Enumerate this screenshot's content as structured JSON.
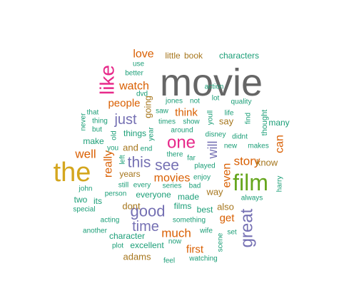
{
  "chart_data": {
    "type": "wordcloud",
    "colors": {
      "gray": "#666666",
      "gold": "#D4A61E",
      "green": "#66A61E",
      "magenta": "#E7298A",
      "purple": "#7570B3",
      "orange": "#D95F02",
      "brown": "#A6761D",
      "teal": "#1B9E77"
    },
    "words": [
      {
        "text": "movie",
        "tier": 1,
        "color": "gray",
        "rotate": 0
      },
      {
        "text": "the",
        "tier": 2,
        "color": "gold",
        "rotate": 0
      },
      {
        "text": "film",
        "tier": 2,
        "color": "green",
        "rotate": 0
      },
      {
        "text": "like",
        "tier": 3,
        "color": "magenta",
        "rotate": -90
      },
      {
        "text": "one",
        "tier": 3,
        "color": "magenta",
        "rotate": 0
      },
      {
        "text": "great",
        "tier": 4,
        "color": "purple",
        "rotate": -90
      },
      {
        "text": "good",
        "tier": 4,
        "color": "purple",
        "rotate": 0
      },
      {
        "text": "time",
        "tier": 4,
        "color": "purple",
        "rotate": 0
      },
      {
        "text": "see",
        "tier": 4,
        "color": "purple",
        "rotate": 0
      },
      {
        "text": "this",
        "tier": 4,
        "color": "purple",
        "rotate": 0
      },
      {
        "text": "just",
        "tier": 4,
        "color": "purple",
        "rotate": 0
      },
      {
        "text": "will",
        "tier": 4,
        "color": "purple",
        "rotate": -90
      },
      {
        "text": "story",
        "tier": 5,
        "color": "orange",
        "rotate": 0
      },
      {
        "text": "well",
        "tier": 5,
        "color": "orange",
        "rotate": 0
      },
      {
        "text": "much",
        "tier": 5,
        "color": "orange",
        "rotate": 0
      },
      {
        "text": "movies",
        "tier": 5,
        "color": "orange",
        "rotate": 0
      },
      {
        "text": "love",
        "tier": 5,
        "color": "orange",
        "rotate": 0
      },
      {
        "text": "really",
        "tier": 5,
        "color": "orange",
        "rotate": -90
      },
      {
        "text": "even",
        "tier": 5,
        "color": "orange",
        "rotate": -90
      },
      {
        "text": "can",
        "tier": 5,
        "color": "orange",
        "rotate": -90
      },
      {
        "text": "watch",
        "tier": 5,
        "color": "orange",
        "rotate": 0
      },
      {
        "text": "people",
        "tier": 5,
        "color": "orange",
        "rotate": 0
      },
      {
        "text": "think",
        "tier": 5,
        "color": "orange",
        "rotate": 0
      },
      {
        "text": "get",
        "tier": 5,
        "color": "orange",
        "rotate": 0
      },
      {
        "text": "first",
        "tier": 5,
        "color": "orange",
        "rotate": 0
      },
      {
        "text": "say",
        "tier": 6,
        "color": "brown",
        "rotate": 0
      },
      {
        "text": "know",
        "tier": 6,
        "color": "brown",
        "rotate": 0
      },
      {
        "text": "and",
        "tier": 6,
        "color": "brown",
        "rotate": 0
      },
      {
        "text": "dont",
        "tier": 6,
        "color": "brown",
        "rotate": 0
      },
      {
        "text": "adams",
        "tier": 6,
        "color": "brown",
        "rotate": 0
      },
      {
        "text": "also",
        "tier": 6,
        "color": "brown",
        "rotate": 0
      },
      {
        "text": "way",
        "tier": 6,
        "color": "brown",
        "rotate": 0
      },
      {
        "text": "going",
        "tier": 6,
        "color": "brown",
        "rotate": -90
      },
      {
        "text": "years",
        "tier": 6,
        "color": "brown",
        "rotate": 0
      },
      {
        "text": "characters",
        "tier": 7,
        "color": "teal",
        "rotate": 0
      },
      {
        "text": "little",
        "tier": 7,
        "color": "brown",
        "rotate": 0
      },
      {
        "text": "book",
        "tier": 7,
        "color": "brown",
        "rotate": 0
      },
      {
        "text": "things",
        "tier": 7,
        "color": "teal",
        "rotate": 0
      },
      {
        "text": "make",
        "tier": 7,
        "color": "teal",
        "rotate": 0
      },
      {
        "text": "everyone",
        "tier": 7,
        "color": "teal",
        "rotate": 0
      },
      {
        "text": "made",
        "tier": 7,
        "color": "teal",
        "rotate": 0
      },
      {
        "text": "character",
        "tier": 7,
        "color": "teal",
        "rotate": 0
      },
      {
        "text": "excellent",
        "tier": 7,
        "color": "teal",
        "rotate": 0
      },
      {
        "text": "best",
        "tier": 7,
        "color": "teal",
        "rotate": 0
      },
      {
        "text": "films",
        "tier": 7,
        "color": "teal",
        "rotate": 0
      },
      {
        "text": "thought",
        "tier": 7,
        "color": "teal",
        "rotate": -90
      },
      {
        "text": "many",
        "tier": 7,
        "color": "teal",
        "rotate": 0
      },
      {
        "text": "two",
        "tier": 7,
        "color": "teal",
        "rotate": 0
      },
      {
        "text": "its",
        "tier": 7,
        "color": "teal",
        "rotate": 0
      },
      {
        "text": "use",
        "tier": 8,
        "color": "teal",
        "rotate": 0
      },
      {
        "text": "better",
        "tier": 8,
        "color": "teal",
        "rotate": 0
      },
      {
        "text": "dvd",
        "tier": 8,
        "color": "teal",
        "rotate": 0
      },
      {
        "text": "action",
        "tier": 8,
        "color": "teal",
        "rotate": 0
      },
      {
        "text": "jones",
        "tier": 8,
        "color": "teal",
        "rotate": 0
      },
      {
        "text": "not",
        "tier": 8,
        "color": "teal",
        "rotate": 0
      },
      {
        "text": "lot",
        "tier": 8,
        "color": "teal",
        "rotate": 0
      },
      {
        "text": "quality",
        "tier": 8,
        "color": "teal",
        "rotate": 0
      },
      {
        "text": "that",
        "tier": 8,
        "color": "teal",
        "rotate": 0
      },
      {
        "text": "saw",
        "tier": 8,
        "color": "teal",
        "rotate": 0
      },
      {
        "text": "youll",
        "tier": 8,
        "color": "teal",
        "rotate": -90
      },
      {
        "text": "life",
        "tier": 8,
        "color": "teal",
        "rotate": 0
      },
      {
        "text": "find",
        "tier": 8,
        "color": "teal",
        "rotate": -90
      },
      {
        "text": "never",
        "tier": 8,
        "color": "teal",
        "rotate": -90
      },
      {
        "text": "thing",
        "tier": 8,
        "color": "teal",
        "rotate": 0
      },
      {
        "text": "times",
        "tier": 8,
        "color": "teal",
        "rotate": 0
      },
      {
        "text": "show",
        "tier": 8,
        "color": "teal",
        "rotate": 0
      },
      {
        "text": "but",
        "tier": 8,
        "color": "teal",
        "rotate": 0
      },
      {
        "text": "old",
        "tier": 8,
        "color": "teal",
        "rotate": -90
      },
      {
        "text": "year",
        "tier": 8,
        "color": "teal",
        "rotate": -90
      },
      {
        "text": "around",
        "tier": 8,
        "color": "teal",
        "rotate": 0
      },
      {
        "text": "disney",
        "tier": 8,
        "color": "teal",
        "rotate": 0
      },
      {
        "text": "didnt",
        "tier": 8,
        "color": "teal",
        "rotate": 0
      },
      {
        "text": "you",
        "tier": 8,
        "color": "teal",
        "rotate": 0
      },
      {
        "text": "end",
        "tier": 8,
        "color": "teal",
        "rotate": 0
      },
      {
        "text": "new",
        "tier": 8,
        "color": "teal",
        "rotate": 0
      },
      {
        "text": "makes",
        "tier": 8,
        "color": "teal",
        "rotate": 0
      },
      {
        "text": "left",
        "tier": 8,
        "color": "teal",
        "rotate": -90
      },
      {
        "text": "there",
        "tier": 8,
        "color": "teal",
        "rotate": 0
      },
      {
        "text": "far",
        "tier": 8,
        "color": "teal",
        "rotate": 0
      },
      {
        "text": "played",
        "tier": 8,
        "color": "teal",
        "rotate": 0
      },
      {
        "text": "enjoy",
        "tier": 8,
        "color": "teal",
        "rotate": 0
      },
      {
        "text": "harry",
        "tier": 8,
        "color": "teal",
        "rotate": -90
      },
      {
        "text": "john",
        "tier": 8,
        "color": "teal",
        "rotate": 0
      },
      {
        "text": "still",
        "tier": 8,
        "color": "teal",
        "rotate": 0
      },
      {
        "text": "every",
        "tier": 8,
        "color": "teal",
        "rotate": 0
      },
      {
        "text": "series",
        "tier": 8,
        "color": "teal",
        "rotate": 0
      },
      {
        "text": "bad",
        "tier": 8,
        "color": "teal",
        "rotate": 0
      },
      {
        "text": "person",
        "tier": 8,
        "color": "teal",
        "rotate": 0
      },
      {
        "text": "always",
        "tier": 8,
        "color": "teal",
        "rotate": 0
      },
      {
        "text": "special",
        "tier": 8,
        "color": "teal",
        "rotate": 0
      },
      {
        "text": "acting",
        "tier": 8,
        "color": "teal",
        "rotate": 0
      },
      {
        "text": "something",
        "tier": 8,
        "color": "teal",
        "rotate": 0
      },
      {
        "text": "another",
        "tier": 8,
        "color": "teal",
        "rotate": 0
      },
      {
        "text": "wife",
        "tier": 8,
        "color": "teal",
        "rotate": 0
      },
      {
        "text": "set",
        "tier": 8,
        "color": "teal",
        "rotate": 0
      },
      {
        "text": "scene",
        "tier": 8,
        "color": "teal",
        "rotate": -90
      },
      {
        "text": "now",
        "tier": 8,
        "color": "teal",
        "rotate": 0
      },
      {
        "text": "plot",
        "tier": 8,
        "color": "teal",
        "rotate": 0
      },
      {
        "text": "feel",
        "tier": 8,
        "color": "teal",
        "rotate": 0
      },
      {
        "text": "watching",
        "tier": 8,
        "color": "teal",
        "rotate": 0
      }
    ]
  }
}
